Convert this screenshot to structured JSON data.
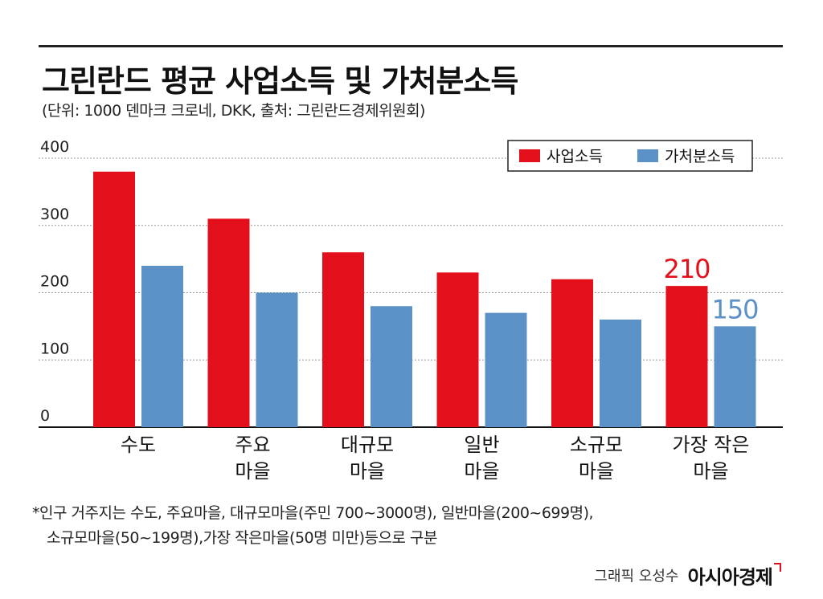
{
  "header": {
    "title": "그린란드 평균 사업소득 및 가처분소득",
    "subtitle": "(단위: 1000 덴마크 크로네, DKK, 출처: 그린란드경제위원회)"
  },
  "chart_data": {
    "type": "bar",
    "title": "그린란드 평균 사업소득 및 가처분소득",
    "xlabel": "",
    "ylabel": "",
    "ylim": [
      0,
      400
    ],
    "yticks": [
      "0",
      "100",
      "200",
      "300",
      "400"
    ],
    "grid": true,
    "legend_position": "top-right",
    "categories": [
      [
        "수도"
      ],
      [
        "주요",
        "마을"
      ],
      [
        "대규모",
        "마을"
      ],
      [
        "일반",
        "마을"
      ],
      [
        "소규모",
        "마을"
      ],
      [
        "가장 작은",
        "마을"
      ]
    ],
    "series": [
      {
        "name": "사업소득",
        "color": "#e3101b",
        "values": [
          380,
          310,
          260,
          230,
          220,
          210
        ]
      },
      {
        "name": "가처분소득",
        "color": "#5b91c6",
        "values": [
          240,
          200,
          180,
          170,
          160,
          150
        ]
      }
    ],
    "annotations": [
      {
        "series": 0,
        "index": 5,
        "text": "210"
      },
      {
        "series": 1,
        "index": 5,
        "text": "150"
      }
    ]
  },
  "footnotes": [
    "*인구 거주지는 수도, 주요마을, 대규모마을(주민 700~3000명), 일반마을(200~699명),",
    "소규모마을(50~199명),가장 작은마을(50명 미만)등으로 구분"
  ],
  "credit": {
    "author": "그래픽 오성수",
    "brand": "아시아경제"
  }
}
